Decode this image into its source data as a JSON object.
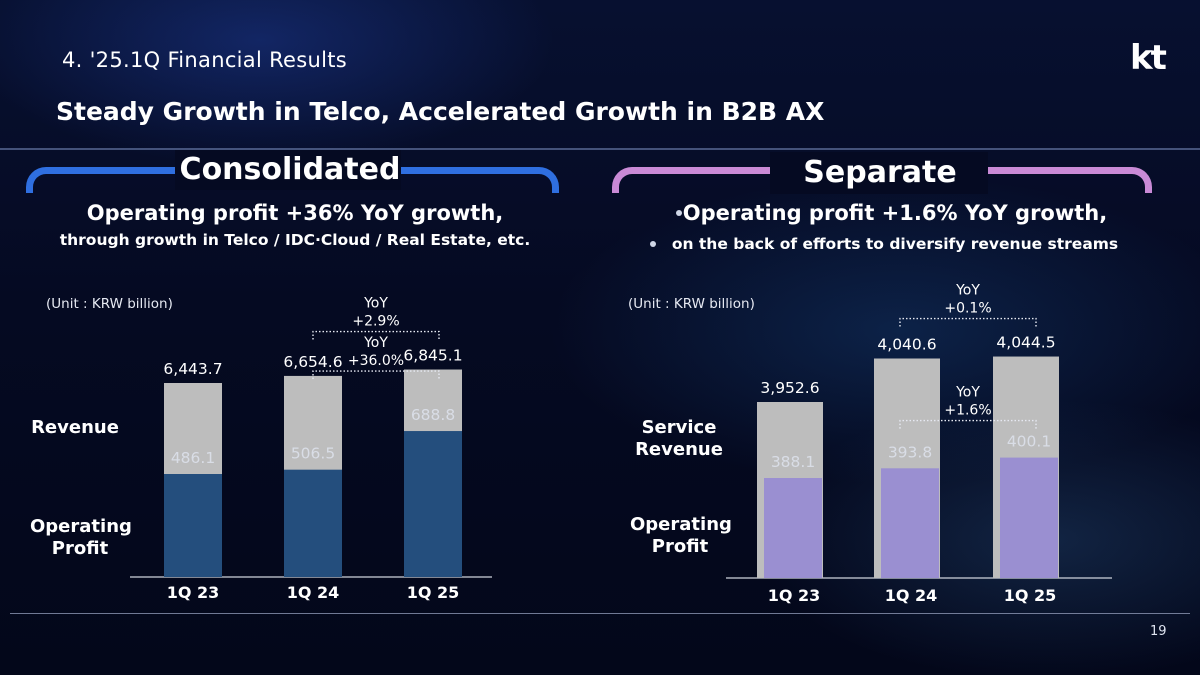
{
  "header": {
    "title": "4. '25.1Q Financial Results",
    "subtitle": "Steady Growth in Telco, Accelerated Growth in B2B AX",
    "logo_text": "kt",
    "page_number": "19"
  },
  "colors": {
    "consolidated_accent": "#2f6fe0",
    "separate_accent": "#c98ad6",
    "revenue_bar": "#bdbdbd",
    "consolidated_op_bar": "#244e7d",
    "separate_op_bar": "#9a8fd1"
  },
  "consolidated": {
    "heading": "Consolidated",
    "desc_line1": "Operating profit +36% YoY growth,",
    "desc_line2": "through growth in Telco / IDC·Cloud / Real Estate, etc.",
    "unit": "(Unit : KRW billion)",
    "row_label_top": "Revenue",
    "row_label_bottom_1": "Operating",
    "row_label_bottom_2": "Profit"
  },
  "separate": {
    "heading": "Separate",
    "desc_line1": "Operating profit +1.6% YoY growth,",
    "desc_line2": "on the back of efforts to diversify revenue streams",
    "unit": "(Unit : KRW billion)",
    "row_label_top_1": "Service",
    "row_label_top_2": "Revenue",
    "row_label_bottom_1": "Operating",
    "row_label_bottom_2": "Profit"
  },
  "chart_data": [
    {
      "type": "bar",
      "title": "Consolidated",
      "categories": [
        "1Q 23",
        "1Q 24",
        "1Q 25"
      ],
      "series": [
        {
          "name": "Revenue",
          "values": [
            6443.7,
            6654.6,
            6845.1
          ],
          "labels": [
            "6,443.7",
            "6,654.6",
            "6,845.1"
          ]
        },
        {
          "name": "Operating Profit",
          "values": [
            486.1,
            506.5,
            688.8
          ],
          "labels": [
            "486.1",
            "506.5",
            "688.8"
          ]
        }
      ],
      "annotations": [
        {
          "text1": "YoY",
          "text2": "+2.9%",
          "from": "1Q 24",
          "to": "1Q 25",
          "series": "Revenue"
        },
        {
          "text1": "YoY",
          "text2": "+36.0%",
          "from": "1Q 24",
          "to": "1Q 25",
          "series": "Operating Profit"
        }
      ],
      "unit": "KRW billion"
    },
    {
      "type": "bar",
      "title": "Separate",
      "categories": [
        "1Q 23",
        "1Q 24",
        "1Q 25"
      ],
      "series": [
        {
          "name": "Service Revenue",
          "values": [
            3952.6,
            4040.6,
            4044.5
          ],
          "labels": [
            "3,952.6",
            "4,040.6",
            "4,044.5"
          ]
        },
        {
          "name": "Operating Profit",
          "values": [
            388.1,
            393.8,
            400.1
          ],
          "labels": [
            "388.1",
            "393.8",
            "400.1"
          ]
        }
      ],
      "annotations": [
        {
          "text1": "YoY",
          "text2": "+0.1%",
          "from": "1Q 24",
          "to": "1Q 25",
          "series": "Service Revenue"
        },
        {
          "text1": "YoY",
          "text2": "+1.6%",
          "from": "1Q 24",
          "to": "1Q 25",
          "series": "Operating Profit"
        }
      ],
      "unit": "KRW billion"
    }
  ]
}
